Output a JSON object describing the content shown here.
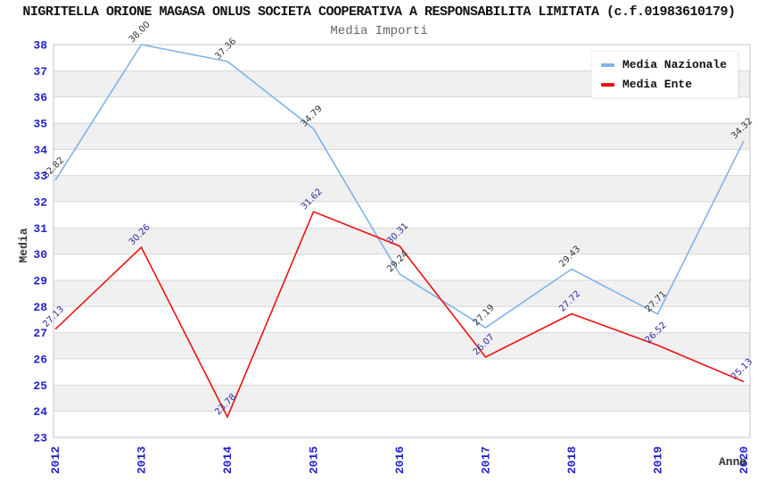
{
  "header": {
    "title": "NIGRITELLA ORIONE MAGASA ONLUS SOCIETA COOPERATIVA A RESPONSABILITA LIMITATA (c.f.01983610179)",
    "subtitle": "Media Importi"
  },
  "legend": {
    "items": [
      {
        "label": "Media Nazionale",
        "color": "#7db3ea"
      },
      {
        "label": "Media Ente",
        "color": "#ee1111"
      }
    ]
  },
  "chart_data": {
    "type": "line",
    "title": "Media Importi",
    "xlabel": "Anno",
    "ylabel": "Media",
    "x": [
      "2012",
      "2013",
      "2014",
      "2015",
      "2016",
      "2017",
      "2018",
      "2019",
      "2020"
    ],
    "series": [
      {
        "name": "Media Nazionale",
        "color": "#7db3ea",
        "label_color": "#333333",
        "values": [
          32.82,
          38.0,
          37.36,
          34.79,
          29.24,
          27.19,
          29.43,
          27.71,
          34.32
        ]
      },
      {
        "name": "Media Ente",
        "color": "#ee1111",
        "label_color": "#2a2aa0",
        "values": [
          27.13,
          30.26,
          23.78,
          31.62,
          30.31,
          26.07,
          27.72,
          26.52,
          25.13
        ]
      }
    ],
    "ylim": [
      23,
      38
    ],
    "y_tick_step": 1,
    "grid": true,
    "band_fill": "#f0f0f0",
    "gridline_color": "#d8d8d8",
    "plot_border_color": "#c4c4c4",
    "tick_label_color": "#2222cc",
    "axis_title_color": "#333333",
    "legend_position": "top-right"
  }
}
